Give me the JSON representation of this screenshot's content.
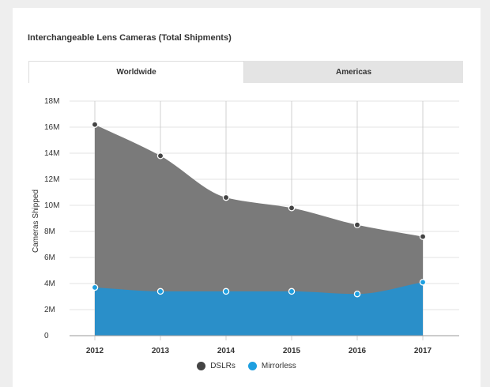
{
  "card": {
    "title": "Interchangeable Lens Cameras (Total Shipments)"
  },
  "tabs": [
    {
      "label": "Worldwide",
      "active": true
    },
    {
      "label": "Americas",
      "active": false
    }
  ],
  "chart_data": {
    "type": "area",
    "title": "Interchangeable Lens Cameras (Total Shipments)",
    "x": [
      "2012",
      "2013",
      "2014",
      "2015",
      "2016",
      "2017"
    ],
    "ylabel": "Cameras Shipped",
    "ylim": [
      0,
      18
    ],
    "yticks": [
      "0",
      "2M",
      "4M",
      "6M",
      "8M",
      "10M",
      "12M",
      "14M",
      "16M",
      "18M"
    ],
    "grid": true,
    "legend_position": "bottom",
    "series": [
      {
        "name": "DSLRs",
        "color": "#444444",
        "fill": "#7a7a7a",
        "values": [
          16.2,
          13.8,
          10.6,
          9.8,
          8.5,
          7.6
        ]
      },
      {
        "name": "Mirrorless",
        "color": "#1e9fe0",
        "fill": "#2a8fc9",
        "values": [
          3.7,
          3.4,
          3.4,
          3.4,
          3.2,
          4.1
        ]
      }
    ]
  }
}
